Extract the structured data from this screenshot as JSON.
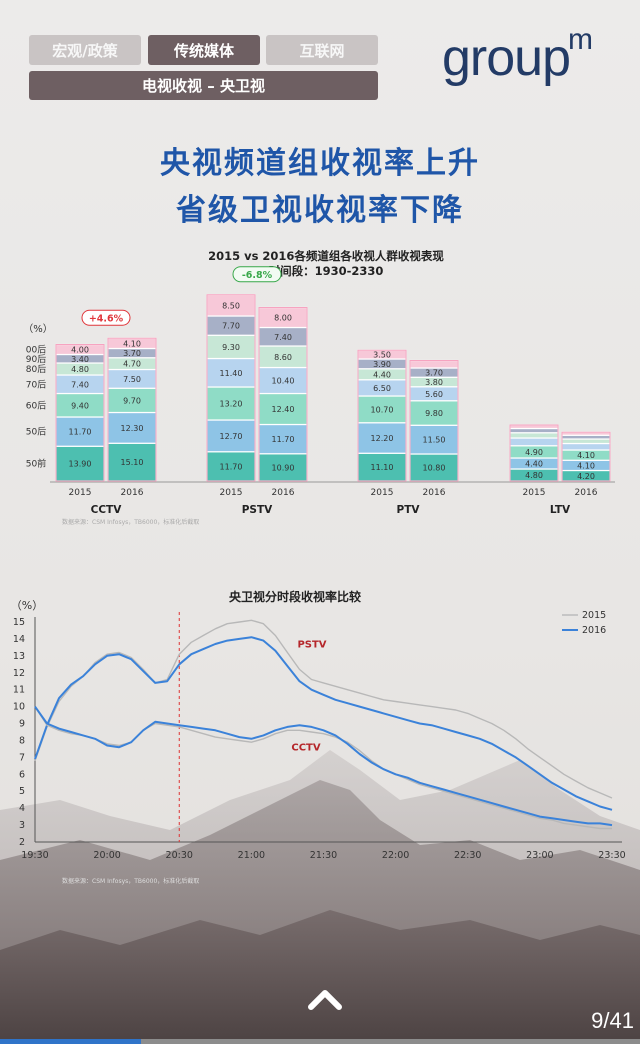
{
  "nav": {
    "tabs": [
      {
        "label": "宏观/政策",
        "active": false
      },
      {
        "label": "传统媒体",
        "active": true
      },
      {
        "label": "互联网",
        "active": false
      }
    ],
    "section": "电视收视 – 央卫视"
  },
  "logo": {
    "text": "group",
    "sup": "m"
  },
  "headline": {
    "line1": "央视频道组收视率上升",
    "line2": "省级卫视收视率下降"
  },
  "chart_data": [
    {
      "type": "bar",
      "title": "2015 vs 2016各频道组各收视人群收视表现",
      "subtitle": "时间段：1930-2330",
      "ylabel": "（%）",
      "age_groups": [
        "50前",
        "50后",
        "60后",
        "70后",
        "80后",
        "90后",
        "00后"
      ],
      "age_colors": [
        "#4dbfb0",
        "#8ec4e6",
        "#8fdcc6",
        "#b7d4ef",
        "#c7e7d6",
        "#a7b0c7",
        "#f7c8d8"
      ],
      "source": "数据来源：CSM Infosys，TB6000，标准化后截取",
      "groups": [
        {
          "name": "CCTV",
          "change": "+4.6%",
          "change_dir": "up",
          "years": [
            {
              "year": "2015",
              "values": [
                13.9,
                11.7,
                9.4,
                7.4,
                4.8,
                3.4,
                4.0
              ]
            },
            {
              "year": "2016",
              "values": [
                15.1,
                12.3,
                9.7,
                7.5,
                4.7,
                3.7,
                4.1
              ]
            }
          ]
        },
        {
          "name": "PSTV",
          "change": "-6.8%",
          "change_dir": "down",
          "years": [
            {
              "year": "2015",
              "values": [
                11.7,
                12.7,
                13.2,
                11.4,
                9.3,
                7.7,
                8.5
              ]
            },
            {
              "year": "2016",
              "values": [
                10.9,
                11.7,
                12.4,
                10.4,
                8.6,
                7.4,
                8.0
              ]
            }
          ]
        },
        {
          "name": "PTV",
          "change": "",
          "change_dir": "",
          "years": [
            {
              "year": "2015",
              "values": [
                11.1,
                12.2,
                10.7,
                6.5,
                4.4,
                3.9,
                3.5
              ]
            },
            {
              "year": "2016",
              "values": [
                10.8,
                11.5,
                9.8,
                5.6,
                3.8,
                3.7,
                3.0
              ]
            }
          ]
        },
        {
          "name": "LTV",
          "change": "",
          "change_dir": "",
          "years": [
            {
              "year": "2015",
              "values": [
                4.8,
                4.4,
                4.9,
                3.1,
                2.1,
                1.7,
                1.4
              ]
            },
            {
              "year": "2016",
              "values": [
                4.2,
                4.1,
                4.1,
                2.6,
                1.8,
                1.5,
                1.2
              ]
            }
          ]
        }
      ]
    },
    {
      "type": "line",
      "title": "央卫视分时段收视率比较",
      "ylabel": "（%）",
      "ylim": [
        2,
        15
      ],
      "yticks": [
        2,
        3,
        4,
        5,
        6,
        7,
        8,
        9,
        10,
        11,
        12,
        13,
        14,
        15
      ],
      "xticks": [
        "19:30",
        "20:00",
        "20:30",
        "21:00",
        "21:30",
        "22:00",
        "22:30",
        "23:00",
        "23:30"
      ],
      "x_minutes": [
        0,
        5,
        10,
        15,
        20,
        25,
        30,
        35,
        40,
        45,
        50,
        55,
        60,
        65,
        70,
        75,
        80,
        85,
        90,
        95,
        100,
        105,
        110,
        115,
        120,
        125,
        130,
        135,
        140,
        145,
        150,
        155,
        160,
        165,
        170,
        175,
        180,
        185,
        190,
        195,
        200,
        205,
        210,
        215,
        220,
        225,
        230,
        235,
        240
      ],
      "marker_line": "20:30",
      "legend": [
        "2015",
        "2016"
      ],
      "legend_position": "top-right",
      "series_colors": {
        "2015": "#b8b8b8",
        "2016": "#3b82d9"
      },
      "source": "数据来源：CSM Infosys，TB6000，标准化后截取",
      "series": [
        {
          "name": "PSTV",
          "year": "2015",
          "values": [
            6.8,
            8.8,
            10.3,
            11.2,
            11.8,
            12.6,
            13.1,
            13.2,
            12.9,
            12.2,
            11.4,
            11.6,
            13.1,
            13.8,
            14.2,
            14.6,
            14.9,
            15.0,
            15.1,
            14.9,
            14.2,
            13.2,
            12.2,
            11.6,
            11.4,
            11.2,
            11.0,
            10.8,
            10.6,
            10.4,
            10.3,
            10.2,
            10.1,
            10.0,
            9.9,
            9.8,
            9.6,
            9.3,
            9.0,
            8.6,
            8.1,
            7.5,
            7.0,
            6.5,
            6.0,
            5.6,
            5.2,
            4.9,
            4.6
          ]
        },
        {
          "name": "PSTV",
          "year": "2016",
          "values": [
            6.9,
            8.9,
            10.5,
            11.3,
            11.8,
            12.5,
            13.0,
            13.1,
            12.8,
            12.1,
            11.4,
            11.5,
            12.5,
            13.1,
            13.4,
            13.7,
            13.9,
            14.0,
            14.1,
            13.9,
            13.3,
            12.4,
            11.5,
            11.0,
            10.7,
            10.4,
            10.2,
            10.0,
            9.8,
            9.6,
            9.4,
            9.2,
            9.0,
            8.9,
            8.7,
            8.5,
            8.3,
            8.1,
            7.8,
            7.4,
            7.0,
            6.5,
            6.0,
            5.5,
            5.1,
            4.7,
            4.4,
            4.1,
            3.9
          ]
        },
        {
          "name": "CCTV",
          "year": "2015",
          "values": [
            10.0,
            8.9,
            8.6,
            8.4,
            8.3,
            8.1,
            7.8,
            7.7,
            7.9,
            8.6,
            9.0,
            8.9,
            8.8,
            8.6,
            8.4,
            8.2,
            8.1,
            8.0,
            7.9,
            8.1,
            8.4,
            8.6,
            8.6,
            8.5,
            8.4,
            8.2,
            7.9,
            7.4,
            6.8,
            6.3,
            6.0,
            5.7,
            5.4,
            5.2,
            5.0,
            4.8,
            4.6,
            4.4,
            4.2,
            4.0,
            3.8,
            3.6,
            3.4,
            3.3,
            3.1,
            3.0,
            2.9,
            2.8,
            2.8
          ]
        },
        {
          "name": "CCTV",
          "year": "2016",
          "values": [
            10.0,
            9.0,
            8.7,
            8.5,
            8.3,
            8.1,
            7.7,
            7.6,
            7.9,
            8.6,
            9.1,
            9.0,
            8.9,
            8.8,
            8.7,
            8.6,
            8.4,
            8.2,
            8.1,
            8.3,
            8.6,
            8.8,
            8.9,
            8.8,
            8.6,
            8.3,
            7.8,
            7.2,
            6.7,
            6.3,
            6.0,
            5.8,
            5.5,
            5.3,
            5.1,
            4.9,
            4.7,
            4.5,
            4.3,
            4.1,
            3.9,
            3.7,
            3.5,
            3.4,
            3.3,
            3.2,
            3.1,
            3.1,
            3.0
          ]
        }
      ]
    }
  ],
  "footer": {
    "page": "9/41",
    "progress": 0.22
  }
}
